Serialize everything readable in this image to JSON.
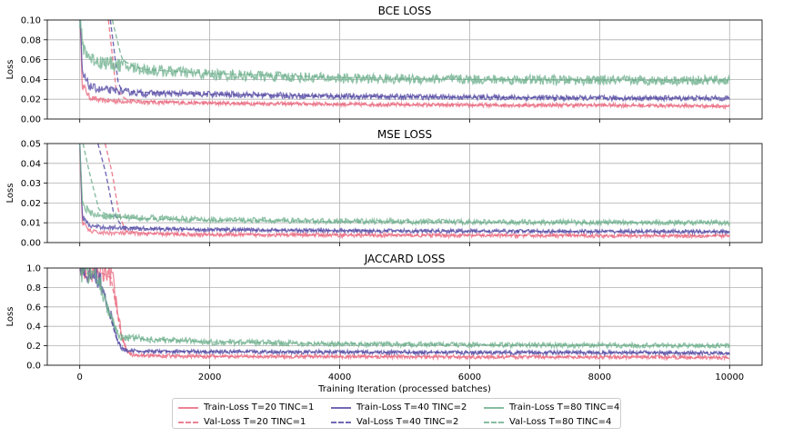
{
  "chart_data": {
    "type": "line",
    "xlabel": "Training Iteration (processed batches)",
    "x_ticks": [
      0,
      2000,
      4000,
      6000,
      8000,
      10000
    ],
    "xlim": [
      -500,
      10500
    ],
    "grid": true,
    "legend_position": "bottom-center",
    "legend": [
      {
        "label": "Train-Loss T=20 TINC=1",
        "color": "#e8637a",
        "style": "solid"
      },
      {
        "label": "Val-Loss T=20 TINC=1",
        "color": "#e8637a",
        "style": "dashed"
      },
      {
        "label": "Train-Loss T=40 TINC=2",
        "color": "#4e43a0",
        "style": "solid"
      },
      {
        "label": "Val-Loss T=40 TINC=2",
        "color": "#4e43a0",
        "style": "dashed"
      },
      {
        "label": "Train-Loss T=80 TINC=4",
        "color": "#6aad8a",
        "style": "solid"
      },
      {
        "label": "Val-Loss T=80 TINC=4",
        "color": "#6aad8a",
        "style": "dashed"
      }
    ],
    "panels": [
      {
        "title": "BCE LOSS",
        "ylabel": "Loss",
        "ylim": [
          0,
          0.1
        ],
        "y_ticks": [
          "0.00",
          "0.02",
          "0.04",
          "0.06",
          "0.08",
          "0.10"
        ],
        "series": [
          {
            "name": "Train-Loss T=20 TINC=1",
            "x": [
              0,
              40,
              150,
              300,
              1000,
              2000,
              4000,
              6000,
              8000,
              10000
            ],
            "y": [
              0.1,
              0.035,
              0.022,
              0.019,
              0.017,
              0.016,
              0.015,
              0.014,
              0.014,
              0.013
            ]
          },
          {
            "name": "Val-Loss T=20 TINC=1",
            "x": [
              440,
              560,
              700,
              1000,
              2000,
              4000,
              6000,
              8000,
              10000
            ],
            "y": [
              0.1,
              0.03,
              0.02,
              0.018,
              0.016,
              0.015,
              0.014,
              0.014,
              0.013
            ]
          },
          {
            "name": "Train-Loss T=40 TINC=2",
            "x": [
              0,
              40,
              150,
              300,
              1000,
              2000,
              4000,
              6000,
              8000,
              10000
            ],
            "y": [
              0.1,
              0.045,
              0.033,
              0.03,
              0.026,
              0.025,
              0.023,
              0.022,
              0.021,
              0.021
            ]
          },
          {
            "name": "Val-Loss T=40 TINC=2",
            "x": [
              470,
              600,
              750,
              1000,
              2000,
              4000,
              6000,
              8000,
              10000
            ],
            "y": [
              0.1,
              0.032,
              0.028,
              0.027,
              0.025,
              0.023,
              0.022,
              0.021,
              0.021
            ]
          },
          {
            "name": "Train-Loss T=80 TINC=4",
            "x": [
              0,
              40,
              150,
              300,
              1000,
              2000,
              4000,
              6000,
              8000,
              10000
            ],
            "y": [
              0.1,
              0.075,
              0.062,
              0.058,
              0.05,
              0.045,
              0.041,
              0.04,
              0.039,
              0.039
            ]
          },
          {
            "name": "Val-Loss T=80 TINC=4",
            "x": [
              500,
              650,
              800,
              1000,
              2000,
              4000,
              6000,
              8000,
              10000
            ],
            "y": [
              0.1,
              0.06,
              0.054,
              0.05,
              0.046,
              0.042,
              0.04,
              0.039,
              0.039
            ]
          }
        ]
      },
      {
        "title": "MSE LOSS",
        "ylabel": "Loss",
        "ylim": [
          0,
          0.05
        ],
        "y_ticks": [
          "0.00",
          "0.01",
          "0.02",
          "0.03",
          "0.04",
          "0.05"
        ],
        "series": [
          {
            "name": "Train-Loss T=20 TINC=1",
            "x": [
              0,
              40,
              150,
              300,
              1000,
              2000,
              4000,
              6000,
              8000,
              10000
            ],
            "y": [
              0.05,
              0.01,
              0.006,
              0.005,
              0.0045,
              0.004,
              0.0038,
              0.0036,
              0.0035,
              0.0034
            ]
          },
          {
            "name": "Val-Loss T=20 TINC=1",
            "x": [
              390,
              500,
              600,
              700,
              1000,
              2000,
              4000,
              6000,
              8000,
              10000
            ],
            "y": [
              0.05,
              0.035,
              0.015,
              0.006,
              0.0045,
              0.004,
              0.0038,
              0.0036,
              0.0035,
              0.0034
            ]
          },
          {
            "name": "Train-Loss T=40 TINC=2",
            "x": [
              0,
              40,
              150,
              300,
              1000,
              2000,
              4000,
              6000,
              8000,
              10000
            ],
            "y": [
              0.05,
              0.013,
              0.0085,
              0.0078,
              0.007,
              0.0065,
              0.006,
              0.0058,
              0.0056,
              0.0055
            ]
          },
          {
            "name": "Val-Loss T=40 TINC=2",
            "x": [
              280,
              400,
              520,
              650,
              1000,
              2000,
              4000,
              6000,
              8000,
              10000
            ],
            "y": [
              0.05,
              0.035,
              0.015,
              0.008,
              0.007,
              0.0065,
              0.006,
              0.0058,
              0.0056,
              0.0055
            ]
          },
          {
            "name": "Train-Loss T=80 TINC=4",
            "x": [
              0,
              40,
              150,
              300,
              1000,
              2000,
              4000,
              6000,
              8000,
              10000
            ],
            "y": [
              0.05,
              0.02,
              0.015,
              0.0135,
              0.0125,
              0.0115,
              0.0108,
              0.0104,
              0.0102,
              0.01
            ]
          },
          {
            "name": "Val-Loss T=80 TINC=4",
            "x": [
              50,
              150,
              300,
              500,
              1000,
              2000,
              4000,
              6000,
              8000,
              10000
            ],
            "y": [
              0.05,
              0.035,
              0.016,
              0.013,
              0.012,
              0.0112,
              0.0106,
              0.0103,
              0.0101,
              0.01
            ]
          }
        ]
      },
      {
        "title": "JACCARD LOSS",
        "ylabel": "Loss",
        "ylim": [
          0,
          1.0
        ],
        "y_ticks": [
          "0.0",
          "0.2",
          "0.4",
          "0.6",
          "0.8",
          "1.0"
        ],
        "series": [
          {
            "name": "Train-Loss T=20 TINC=1",
            "x": [
              0,
              200,
              400,
              500,
              580,
              650,
              720,
              800,
              1000,
              2000,
              4000,
              6000,
              8000,
              10000
            ],
            "y": [
              0.97,
              0.96,
              0.98,
              0.9,
              0.6,
              0.3,
              0.15,
              0.11,
              0.1,
              0.09,
              0.09,
              0.085,
              0.085,
              0.08
            ]
          },
          {
            "name": "Val-Loss T=20 TINC=1",
            "x": [
              0,
              300,
              480,
              560,
              640,
              720,
              800,
              1000,
              2000,
              4000,
              6000,
              8000,
              10000
            ],
            "y": [
              0.97,
              0.96,
              0.9,
              0.6,
              0.3,
              0.15,
              0.11,
              0.1,
              0.09,
              0.09,
              0.085,
              0.085,
              0.08
            ]
          },
          {
            "name": "Train-Loss T=40 TINC=2",
            "x": [
              0,
              200,
              300,
              400,
              500,
              580,
              650,
              750,
              1000,
              2000,
              4000,
              6000,
              8000,
              10000
            ],
            "y": [
              0.96,
              0.95,
              0.9,
              0.7,
              0.45,
              0.25,
              0.17,
              0.15,
              0.14,
              0.14,
              0.135,
              0.13,
              0.13,
              0.125
            ]
          },
          {
            "name": "Val-Loss T=40 TINC=2",
            "x": [
              0,
              250,
              350,
              450,
              550,
              650,
              750,
              1000,
              2000,
              4000,
              6000,
              8000,
              10000
            ],
            "y": [
              0.96,
              0.93,
              0.8,
              0.55,
              0.3,
              0.18,
              0.15,
              0.14,
              0.14,
              0.135,
              0.13,
              0.13,
              0.125
            ]
          },
          {
            "name": "Train-Loss T=80 TINC=4",
            "x": [
              0,
              200,
              300,
              400,
              500,
              580,
              650,
              750,
              1000,
              2000,
              4000,
              6000,
              8000,
              10000
            ],
            "y": [
              0.96,
              0.95,
              0.88,
              0.65,
              0.45,
              0.32,
              0.29,
              0.28,
              0.27,
              0.24,
              0.22,
              0.21,
              0.205,
              0.2
            ]
          },
          {
            "name": "Val-Loss T=80 TINC=4",
            "x": [
              0,
              250,
              350,
              450,
              550,
              650,
              750,
              1000,
              2000,
              4000,
              6000,
              8000,
              10000
            ],
            "y": [
              0.96,
              0.93,
              0.78,
              0.55,
              0.38,
              0.3,
              0.28,
              0.27,
              0.24,
              0.22,
              0.21,
              0.205,
              0.2
            ]
          }
        ]
      }
    ]
  }
}
